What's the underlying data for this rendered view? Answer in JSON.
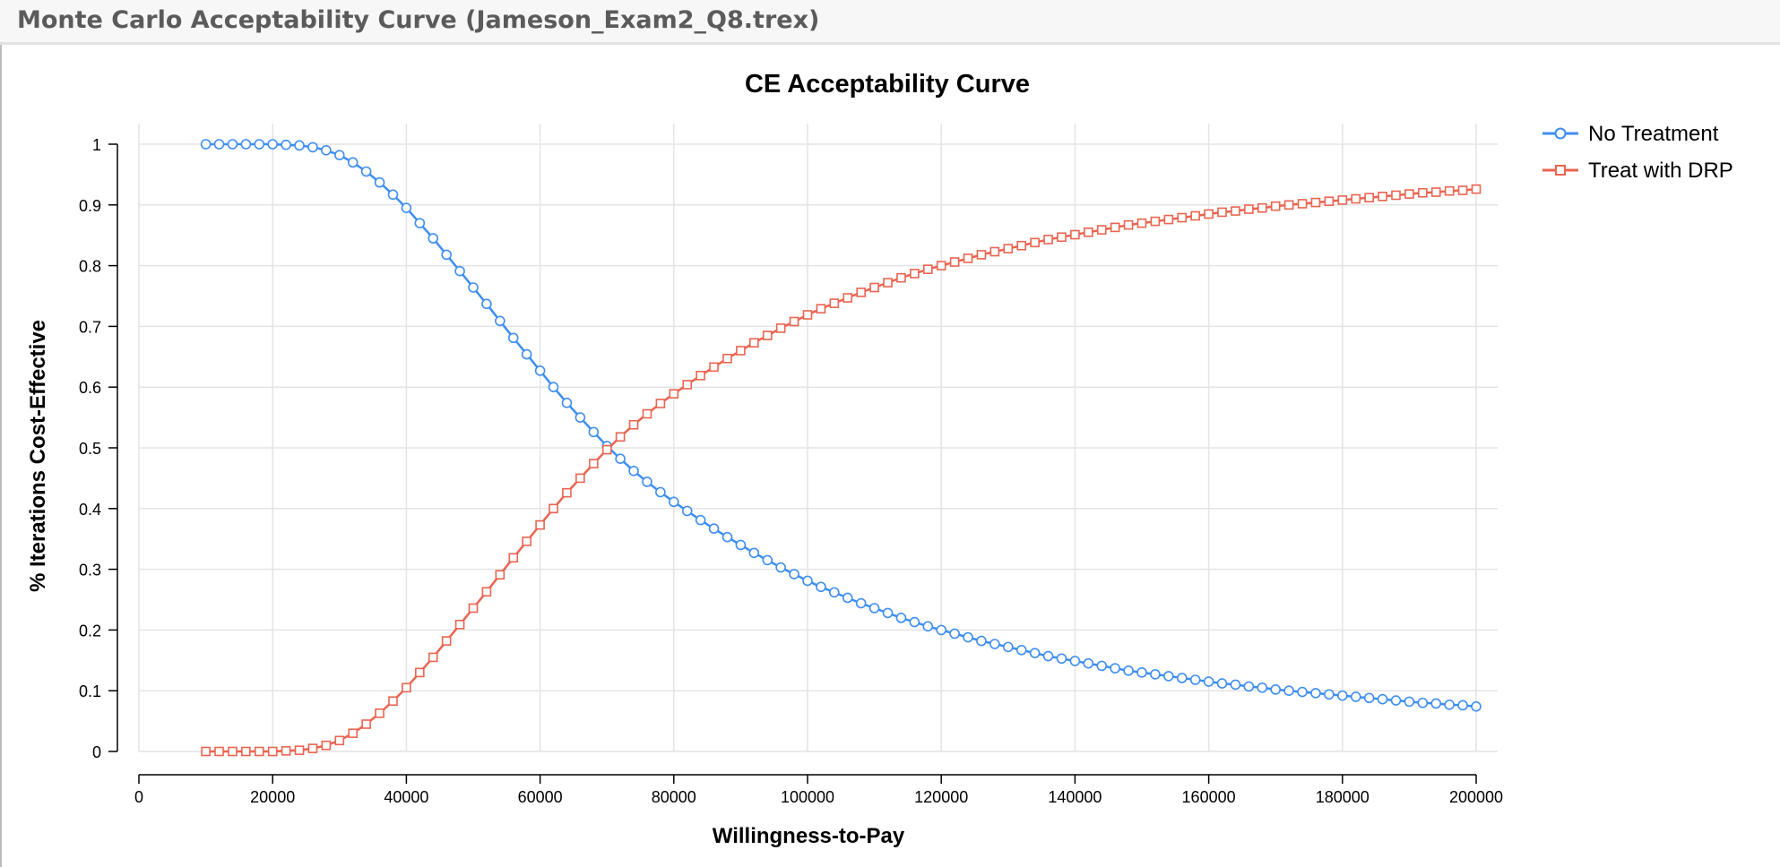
{
  "window": {
    "title": "Monte Carlo Acceptability Curve (Jameson_Exam2_Q8.trex)"
  },
  "colors": {
    "no_treatment": "#3e8ef0",
    "treat_with_drp": "#ea6450",
    "grid": "#e4e4e4",
    "axis": "#000000"
  },
  "chart_data": {
    "type": "line",
    "title": "CE Acceptability Curve",
    "xlabel": "Willingness-to-Pay",
    "ylabel": "% Iterations Cost-Effective",
    "xlim": [
      0,
      200000
    ],
    "ylim": [
      0,
      1
    ],
    "x_ticks": [
      0,
      20000,
      40000,
      60000,
      80000,
      100000,
      120000,
      140000,
      160000,
      180000,
      200000
    ],
    "x_tick_labels": [
      "0",
      "20000",
      "40000",
      "60000",
      "80000",
      "100000",
      "120000",
      "140000",
      "160000",
      "180000",
      "200000"
    ],
    "y_ticks": [
      0,
      0.1,
      0.2,
      0.3,
      0.4,
      0.5,
      0.6,
      0.7,
      0.8,
      0.9,
      1
    ],
    "y_tick_labels": [
      "0",
      "0.1",
      "0.2",
      "0.3",
      "0.4",
      "0.5",
      "0.6",
      "0.7",
      "0.8",
      "0.9",
      "1"
    ],
    "grid": true,
    "legend_position": "top-right",
    "x": [
      10000,
      12000,
      14000,
      16000,
      18000,
      20000,
      22000,
      24000,
      26000,
      28000,
      30000,
      32000,
      34000,
      36000,
      38000,
      40000,
      42000,
      44000,
      46000,
      48000,
      50000,
      52000,
      54000,
      56000,
      58000,
      60000,
      62000,
      64000,
      66000,
      68000,
      70000,
      72000,
      74000,
      76000,
      78000,
      80000,
      82000,
      84000,
      86000,
      88000,
      90000,
      92000,
      94000,
      96000,
      98000,
      100000,
      102000,
      104000,
      106000,
      108000,
      110000,
      112000,
      114000,
      116000,
      118000,
      120000,
      122000,
      124000,
      126000,
      128000,
      130000,
      132000,
      134000,
      136000,
      138000,
      140000,
      142000,
      144000,
      146000,
      148000,
      150000,
      152000,
      154000,
      156000,
      158000,
      160000,
      162000,
      164000,
      166000,
      168000,
      170000,
      172000,
      174000,
      176000,
      178000,
      180000,
      182000,
      184000,
      186000,
      188000,
      190000,
      192000,
      194000,
      196000,
      198000,
      200000
    ],
    "series": [
      {
        "name": "No Treatment",
        "marker": "circle",
        "color": "#3e8ef0",
        "values": [
          1.0,
          1.0,
          1.0,
          1.0,
          1.0,
          1.0,
          0.999,
          0.998,
          0.995,
          0.99,
          0.982,
          0.97,
          0.955,
          0.937,
          0.917,
          0.895,
          0.87,
          0.845,
          0.818,
          0.791,
          0.764,
          0.737,
          0.709,
          0.681,
          0.654,
          0.627,
          0.6,
          0.574,
          0.55,
          0.526,
          0.503,
          0.482,
          0.462,
          0.444,
          0.427,
          0.411,
          0.396,
          0.381,
          0.367,
          0.353,
          0.34,
          0.327,
          0.315,
          0.303,
          0.292,
          0.281,
          0.271,
          0.262,
          0.253,
          0.244,
          0.236,
          0.228,
          0.22,
          0.213,
          0.206,
          0.2,
          0.194,
          0.188,
          0.182,
          0.177,
          0.172,
          0.167,
          0.162,
          0.157,
          0.153,
          0.149,
          0.145,
          0.141,
          0.137,
          0.133,
          0.13,
          0.127,
          0.124,
          0.121,
          0.118,
          0.115,
          0.112,
          0.11,
          0.107,
          0.105,
          0.102,
          0.1,
          0.098,
          0.096,
          0.094,
          0.092,
          0.09,
          0.088,
          0.086,
          0.084,
          0.082,
          0.08,
          0.079,
          0.077,
          0.076,
          0.074
        ]
      },
      {
        "name": "Treat with DRP",
        "marker": "square",
        "color": "#ea6450",
        "values": [
          0.0,
          0.0,
          0.0,
          0.0,
          0.0,
          0.0,
          0.001,
          0.002,
          0.005,
          0.01,
          0.018,
          0.03,
          0.045,
          0.063,
          0.083,
          0.105,
          0.13,
          0.155,
          0.182,
          0.209,
          0.236,
          0.263,
          0.291,
          0.319,
          0.346,
          0.373,
          0.4,
          0.426,
          0.45,
          0.474,
          0.497,
          0.518,
          0.538,
          0.556,
          0.573,
          0.589,
          0.604,
          0.619,
          0.633,
          0.647,
          0.66,
          0.673,
          0.685,
          0.697,
          0.708,
          0.719,
          0.729,
          0.738,
          0.747,
          0.756,
          0.764,
          0.772,
          0.78,
          0.787,
          0.794,
          0.8,
          0.806,
          0.812,
          0.818,
          0.823,
          0.828,
          0.833,
          0.838,
          0.843,
          0.847,
          0.851,
          0.855,
          0.859,
          0.863,
          0.867,
          0.87,
          0.873,
          0.876,
          0.879,
          0.882,
          0.885,
          0.888,
          0.89,
          0.893,
          0.895,
          0.898,
          0.9,
          0.902,
          0.904,
          0.906,
          0.908,
          0.91,
          0.912,
          0.914,
          0.916,
          0.918,
          0.92,
          0.921,
          0.923,
          0.924,
          0.926
        ]
      }
    ]
  }
}
